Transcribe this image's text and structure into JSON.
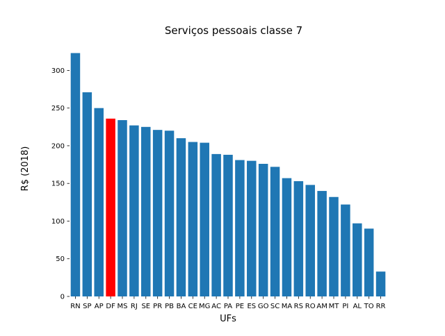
{
  "chart_data": {
    "type": "bar",
    "title": "Serviços pessoais classe 7",
    "xlabel": "UFs",
    "ylabel": "R$ (2018)",
    "ylim": [
      0,
      340
    ],
    "yticks": [
      0,
      50,
      100,
      150,
      200,
      250,
      300
    ],
    "grid": false,
    "bar_color": "#1f77b4",
    "highlight_color": "#ff0000",
    "highlight_category": "DF",
    "categories": [
      "RN",
      "SP",
      "AP",
      "DF",
      "MS",
      "RJ",
      "SE",
      "PR",
      "PB",
      "BA",
      "CE",
      "MG",
      "AC",
      "PA",
      "PE",
      "ES",
      "GO",
      "SC",
      "MA",
      "RS",
      "RO",
      "AM",
      "MT",
      "PI",
      "AL",
      "TO",
      "RR"
    ],
    "values": [
      323,
      271,
      250,
      236,
      234,
      227,
      225,
      221,
      220,
      210,
      205,
      204,
      189,
      188,
      181,
      180,
      176,
      172,
      157,
      153,
      148,
      140,
      132,
      122,
      97,
      90,
      33
    ]
  }
}
